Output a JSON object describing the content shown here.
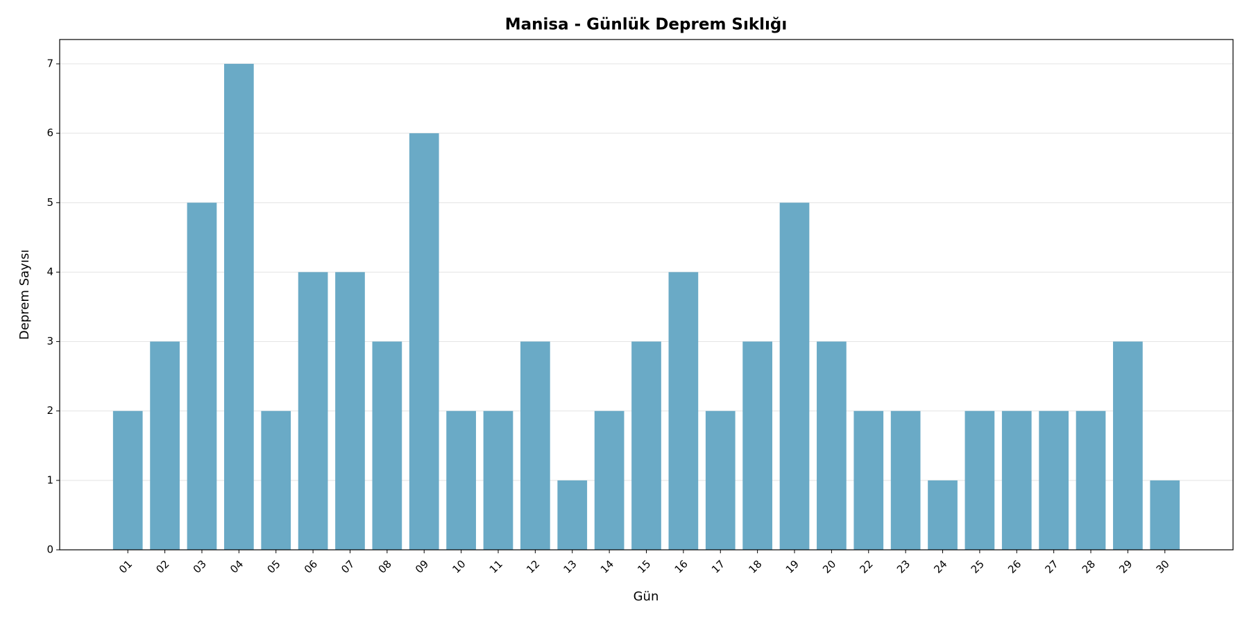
{
  "chart_data": {
    "type": "bar",
    "title": "Manisa - Günlük Deprem Sıklığı",
    "x_label": "Gün",
    "y_label": "Deprem Sayısı",
    "categories": [
      "01",
      "02",
      "03",
      "04",
      "05",
      "06",
      "07",
      "08",
      "09",
      "10",
      "11",
      "12",
      "13",
      "14",
      "15",
      "16",
      "17",
      "18",
      "19",
      "20",
      "22",
      "23",
      "24",
      "25",
      "26",
      "27",
      "28",
      "29",
      "30"
    ],
    "values": [
      2,
      3,
      5,
      7,
      2,
      4,
      4,
      3,
      6,
      2,
      2,
      3,
      1,
      2,
      3,
      4,
      2,
      3,
      5,
      3,
      2,
      2,
      1,
      2,
      2,
      2,
      2,
      3,
      1
    ],
    "color": "#6aaac6",
    "ylim": [
      0,
      7.35
    ],
    "yticks": [
      0,
      1,
      2,
      3,
      4,
      5,
      6,
      7
    ],
    "grid": true
  }
}
